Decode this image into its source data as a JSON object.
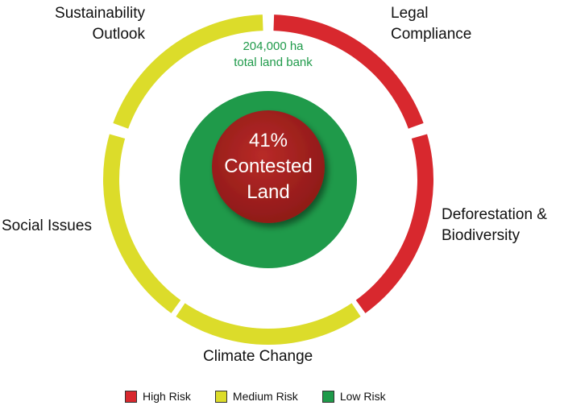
{
  "center": {
    "line1": "41%",
    "line2": "Contested",
    "line3": "Land",
    "color": "#a8201f"
  },
  "inner_ring": {
    "line1": "204,000 ha",
    "line2": "total land bank",
    "text_color": "#1f9a4a",
    "color": "#1f9a4a"
  },
  "segments": [
    {
      "name": "Legal Compliance",
      "lines": [
        "Legal",
        "Compliance"
      ],
      "risk": "High Risk"
    },
    {
      "name": "Deforestation & Biodiversity",
      "lines": [
        "Deforestation &",
        "Biodiversity"
      ],
      "risk": "High Risk"
    },
    {
      "name": "Climate Change",
      "lines": [
        "Climate Change"
      ],
      "risk": "Medium Risk"
    },
    {
      "name": "Social Issues",
      "lines": [
        "Social Issues"
      ],
      "risk": "Medium Risk"
    },
    {
      "name": "Sustainability Outlook",
      "lines": [
        "Sustainability",
        "Outlook"
      ],
      "risk": "Medium Risk"
    }
  ],
  "legend": [
    {
      "label": "High Risk",
      "color": "#d8282e"
    },
    {
      "label": "Medium Risk",
      "color": "#dcdc2a"
    },
    {
      "label": "Low Risk",
      "color": "#1f9a4a"
    }
  ]
}
